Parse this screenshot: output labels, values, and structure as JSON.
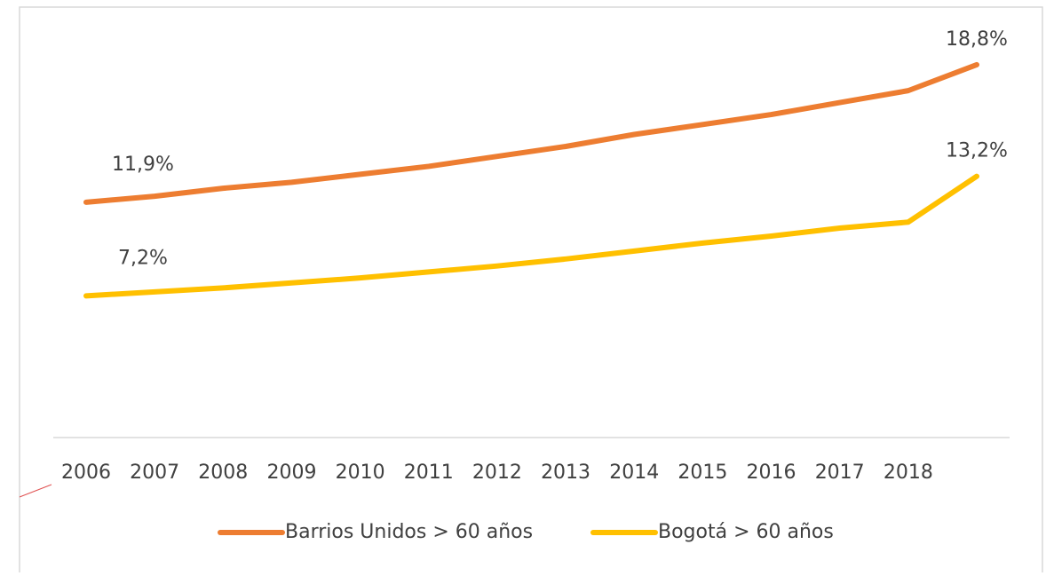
{
  "chart_data": {
    "type": "line",
    "categories": [
      "2006",
      "2007",
      "2008",
      "2009",
      "2010",
      "2011",
      "2012",
      "2013",
      "2014",
      "2015",
      "2016",
      "2017",
      "2018",
      null
    ],
    "series": [
      {
        "name": "Barrios Unidos > 60 años",
        "color": "#ED7D31",
        "values": [
          11.9,
          12.2,
          12.6,
          12.9,
          13.3,
          13.7,
          14.2,
          14.7,
          15.3,
          15.8,
          16.3,
          16.9,
          17.5,
          18.8
        ],
        "value_labels": [
          "11,9%",
          null,
          null,
          null,
          null,
          null,
          null,
          null,
          null,
          null,
          null,
          null,
          null,
          "18,8%"
        ]
      },
      {
        "name": "Bogotá > 60 años",
        "color": "#FFC000",
        "values": [
          7.2,
          7.4,
          7.6,
          7.85,
          8.1,
          8.4,
          8.7,
          9.05,
          9.45,
          9.85,
          10.2,
          10.6,
          10.9,
          13.2
        ],
        "value_labels": [
          "7,2%",
          null,
          null,
          null,
          null,
          null,
          null,
          null,
          null,
          null,
          null,
          null,
          null,
          "13,2%"
        ]
      }
    ],
    "ylim": [
      0,
      20
    ],
    "legend": "bottom"
  }
}
